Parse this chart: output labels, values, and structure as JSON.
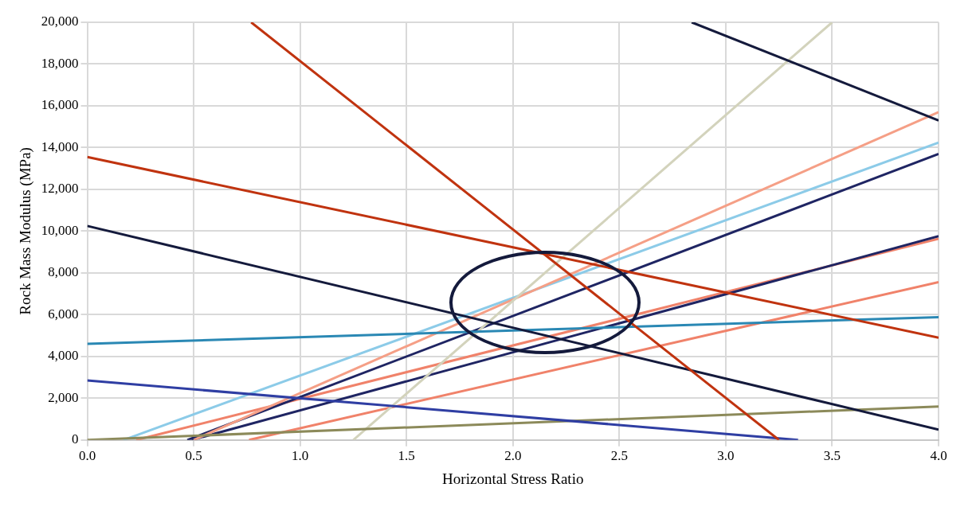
{
  "chart_data": {
    "type": "line",
    "xlabel": "Horizontal Stress Ratio",
    "ylabel": "Rock Mass Modulus (MPa)",
    "xlim": [
      0,
      4
    ],
    "ylim": [
      0,
      20000
    ],
    "xticks": [
      {
        "value": 0,
        "label": "0.0"
      },
      {
        "value": 0.5,
        "label": "0.5"
      },
      {
        "value": 1,
        "label": "1.0"
      },
      {
        "value": 1.5,
        "label": "1.5"
      },
      {
        "value": 2,
        "label": "2.0"
      },
      {
        "value": 2.5,
        "label": "2.5"
      },
      {
        "value": 3,
        "label": "3.0"
      },
      {
        "value": 3.5,
        "label": "3.5"
      },
      {
        "value": 4,
        "label": "4.0"
      }
    ],
    "yticks": [
      0,
      {
        "value": 2000,
        "label": "2,000"
      },
      {
        "value": 4000,
        "label": "4,000"
      },
      {
        "value": 6000,
        "label": "6,000"
      },
      {
        "value": 8000,
        "label": "8,000"
      },
      {
        "value": 10000,
        "label": "10,000"
      },
      {
        "value": 12000,
        "label": "12,000"
      },
      {
        "value": 14000,
        "label": "14,000"
      },
      {
        "value": 16000,
        "label": "16,000"
      },
      {
        "value": 18000,
        "label": "18,000"
      },
      {
        "value": 20000,
        "label": "20,000"
      }
    ],
    "grid": true,
    "legend": false,
    "marker": "none",
    "series": [
      {
        "color": "#141a3c",
        "x": [
          2.84,
          4
        ],
        "values": [
          20000,
          15300
        ]
      },
      {
        "color": "#c0330f",
        "x": [
          0.77,
          3.25
        ],
        "values": [
          20000,
          0
        ]
      },
      {
        "color": "#c0330f",
        "x": [
          0,
          4
        ],
        "values": [
          13550,
          4900
        ]
      },
      {
        "color": "#141a3c",
        "x": [
          0,
          4
        ],
        "values": [
          10250,
          500
        ]
      },
      {
        "color": "#2a88b4",
        "x": [
          0,
          4
        ],
        "values": [
          4600,
          5880
        ]
      },
      {
        "color": "#2f3ea3",
        "x": [
          0,
          3.34
        ],
        "values": [
          2850,
          0
        ]
      },
      {
        "color": "#8c8a5a",
        "x": [
          0,
          4
        ],
        "values": [
          0,
          1600
        ]
      },
      {
        "color": "#d3d3bc",
        "x": [
          1.25,
          3.5
        ],
        "values": [
          0,
          20000
        ]
      },
      {
        "color": "#f59f86",
        "x": [
          0.5,
          4
        ],
        "values": [
          0,
          15700
        ]
      },
      {
        "color": "#8ccbe8",
        "x": [
          0.17,
          4
        ],
        "values": [
          0,
          14240
        ]
      },
      {
        "color": "#1f2563",
        "x": [
          0.47,
          4
        ],
        "values": [
          0,
          13700
        ]
      },
      {
        "color": "#1f2563",
        "x": [
          0.49,
          4
        ],
        "values": [
          0,
          9760
        ]
      },
      {
        "color": "#f0826a",
        "x": [
          0.23,
          4
        ],
        "values": [
          0,
          9640
        ]
      },
      {
        "color": "#f0826a",
        "x": [
          0.76,
          4
        ],
        "values": [
          0,
          7560
        ]
      }
    ]
  }
}
